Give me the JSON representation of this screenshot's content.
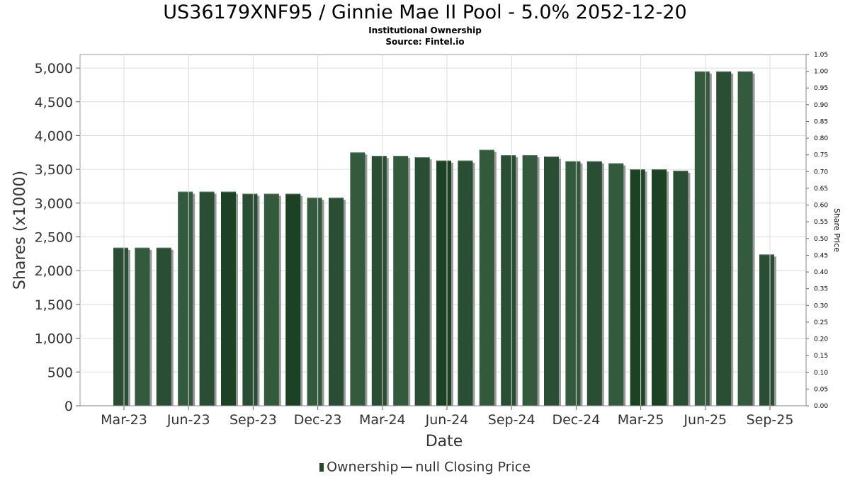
{
  "title": "US36179XNF95 / Ginnie Mae II Pool - 5.0% 2052-12-20",
  "subtitle1": "Institutional Ownership",
  "subtitle2": "Source: Fintel.io",
  "legend": {
    "ownership": "Ownership",
    "price": "null Closing Price"
  },
  "colors": {
    "bar_dark": "#1a4223",
    "bar_mid": "#2a4e33",
    "bar_light": "#345a3e",
    "shadow": "#9a9a9a",
    "grid": "#dcdcdc"
  },
  "chart_data": {
    "type": "bar",
    "xlabel": "Date",
    "ylabel": "Shares (x1000)",
    "y2label": "Share Price",
    "ylim": [
      0,
      5200
    ],
    "y2lim": [
      0,
      1.05
    ],
    "yticks": [
      "0",
      "500",
      "1,000",
      "1,500",
      "2,000",
      "2,500",
      "3,000",
      "3,500",
      "4,000",
      "4,500",
      "5,000"
    ],
    "y2ticks": [
      "0.00",
      "0.05",
      "0.10",
      "0.15",
      "0.20",
      "0.25",
      "0.30",
      "0.35",
      "0.40",
      "0.45",
      "0.50",
      "0.55",
      "0.60",
      "0.65",
      "0.70",
      "0.75",
      "0.80",
      "0.85",
      "0.90",
      "0.95",
      "1.00",
      "1.05"
    ],
    "xticks": [
      "Mar-23",
      "Jun-23",
      "Sep-23",
      "Dec-23",
      "Mar-24",
      "Jun-24",
      "Sep-24",
      "Dec-24",
      "Mar-25",
      "Jun-25",
      "Sep-25"
    ],
    "grid": true,
    "legend_position": "bottom",
    "series": [
      {
        "name": "Ownership",
        "values": [
          2340,
          2340,
          2340,
          3170,
          3170,
          3170,
          3140,
          3140,
          3140,
          3080,
          3080,
          3750,
          3700,
          3700,
          3680,
          3630,
          3630,
          3790,
          3710,
          3710,
          3690,
          3620,
          3620,
          3590,
          3500,
          3500,
          3480,
          4950,
          4950,
          4950,
          2240
        ]
      }
    ]
  }
}
